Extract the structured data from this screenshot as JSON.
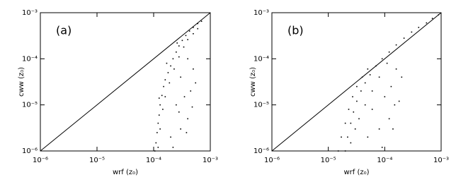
{
  "chart_data": [
    {
      "type": "scatter",
      "panel_label": "(a)",
      "xlabel": "wrf (z₀)",
      "ylabel": "cww (z₀)",
      "color": "#000000",
      "log": true,
      "xlim": [
        1e-06,
        0.001
      ],
      "ylim": [
        1e-06,
        0.001
      ],
      "xticks": [
        {
          "value": 1e-06,
          "label": "10⁻⁶"
        },
        {
          "value": 1e-05,
          "label": "10⁻⁵"
        },
        {
          "value": 0.0001,
          "label": "10⁻⁴"
        },
        {
          "value": 0.001,
          "label": "10⁻³"
        }
      ],
      "yticks": [
        {
          "value": 1e-06,
          "label": "10⁻⁶"
        },
        {
          "value": 1e-05,
          "label": "10⁻⁵"
        },
        {
          "value": 0.0001,
          "label": "10⁻⁴"
        },
        {
          "value": 0.001,
          "label": "10⁻³"
        }
      ],
      "x": [
        0.000105,
        0.00011,
        0.000115,
        0.00012,
        0.000125,
        0.00013,
        0.00014,
        0.00015,
        0.00016,
        0.00018,
        0.0002,
        0.00022,
        0.00025,
        0.00028,
        0.00032,
        0.00037,
        0.00043,
        0.0005,
        0.0006,
        0.0007,
        0.00012,
        0.00013,
        0.000145,
        0.00016,
        0.00019,
        0.00023,
        0.00028,
        0.00034,
        0.0004,
        0.0005,
        0.0006,
        0.00017,
        0.00026,
        0.000125,
        0.0002,
        0.0003,
        0.0004,
        0.00025,
        0.00035,
        0.00045,
        0.0003,
        0.0005,
        0.0004,
        0.00022,
        0.00038,
        0.00055,
        0.00028,
        0.00048
      ],
      "y": [
        1e-06,
        1.5e-06,
        2.5e-06,
        4e-06,
        6e-06,
        1e-05,
        1.6e-05,
        2.5e-05,
        3.5e-05,
        5e-05,
        7e-05,
        0.0001,
        0.00014,
        0.00019,
        0.00025,
        0.00032,
        0.0004,
        0.00048,
        0.00058,
        0.00065,
        1.2e-06,
        3e-06,
        8e-06,
        1.5e-05,
        3e-05,
        6e-05,
        0.00011,
        0.00018,
        0.00026,
        0.00035,
        0.00045,
        8e-05,
        0.00022,
        1.4e-05,
        2e-06,
        3e-06,
        5e-06,
        1e-05,
        1.5e-05,
        2e-05,
        4e-05,
        6e-05,
        0.0001,
        1.2e-06,
        2.5e-06,
        3e-05,
        7e-06,
        9e-06
      ]
    },
    {
      "type": "scatter",
      "panel_label": "(b)",
      "xlabel": "wrf (z₀)",
      "ylabel": "cww (z₀)",
      "color": "#000000",
      "log": true,
      "xlim": [
        1e-06,
        0.001
      ],
      "ylim": [
        1e-06,
        0.001
      ],
      "xticks": [
        {
          "value": 1e-06,
          "label": "10⁻⁶"
        },
        {
          "value": 1e-05,
          "label": "10⁻⁵"
        },
        {
          "value": 0.0001,
          "label": "10⁻⁴"
        },
        {
          "value": 0.001,
          "label": "10⁻³"
        }
      ],
      "yticks": [
        {
          "value": 1e-06,
          "label": "10⁻⁶"
        },
        {
          "value": 1e-05,
          "label": "10⁻⁵"
        },
        {
          "value": 0.0001,
          "label": "10⁻⁴"
        },
        {
          "value": 0.001,
          "label": "10⁻³"
        }
      ],
      "x": [
        2e-05,
        2.2e-05,
        2.5e-05,
        2.8e-05,
        3.2e-05,
        3.8e-05,
        4.5e-05,
        5.5e-05,
        7e-05,
        9e-05,
        0.00012,
        0.00016,
        0.00022,
        0.0003,
        0.0004,
        0.00055,
        0.0007,
        0.0009,
        1.5e-05,
        1.7e-05,
        2e-05,
        2.3e-05,
        2.7e-05,
        3.2e-05,
        4e-05,
        5e-05,
        2.5e-05,
        3e-05,
        3.5e-05,
        4.5e-05,
        6e-05,
        8e-05,
        0.00011,
        5e-05,
        8e-05,
        0.00012,
        0.00015,
        0.0001,
        0.00013,
        6e-05,
        0.00018,
        9e-05,
        0.00014,
        0.0002,
        0.00016
      ],
      "y": [
        1e-06,
        2e-06,
        4e-06,
        7e-06,
        1.2e-05,
        2e-05,
        3e-05,
        4.5e-05,
        7e-05,
        0.0001,
        0.00014,
        0.0002,
        0.00028,
        0.00038,
        0.00048,
        0.0006,
        0.00075,
        0.0009,
        1e-06,
        2e-06,
        4e-06,
        8e-06,
        1.5e-05,
        2.5e-05,
        4e-05,
        6e-05,
        1.5e-06,
        3e-06,
        5e-06,
        1e-05,
        2e-05,
        4e-05,
        8e-05,
        2e-06,
        3e-06,
        5e-06,
        1e-05,
        1.5e-05,
        2.5e-05,
        8e-06,
        1.2e-05,
        1.2e-06,
        3e-06,
        4e-05,
        6e-05
      ]
    }
  ]
}
